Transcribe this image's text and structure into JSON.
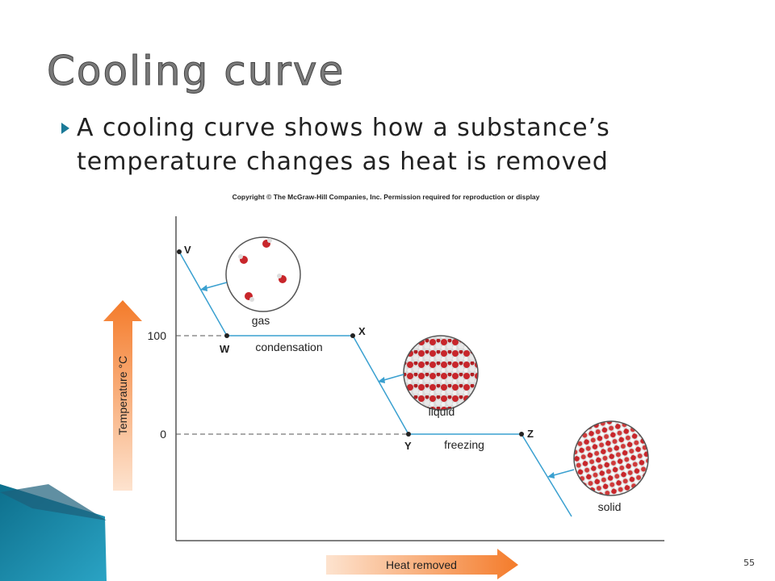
{
  "title": "Cooling curve",
  "bullet": "A cooling curve shows how a substance’s temperature changes as heat is removed",
  "copyright": "Copyright © The McGraw-Hill Companies, Inc. Permission required for reproduction or display",
  "diagram": {
    "points": [
      "V",
      "W",
      "X",
      "Y",
      "Z"
    ],
    "phase_labels": [
      "gas",
      "condensation",
      "liquid",
      "freezing",
      "solid"
    ],
    "y_axis_label": "Temperature °C",
    "x_axis_label": "Heat removed",
    "temperature_marks": [
      "100",
      "0"
    ]
  },
  "page_number": "55"
}
